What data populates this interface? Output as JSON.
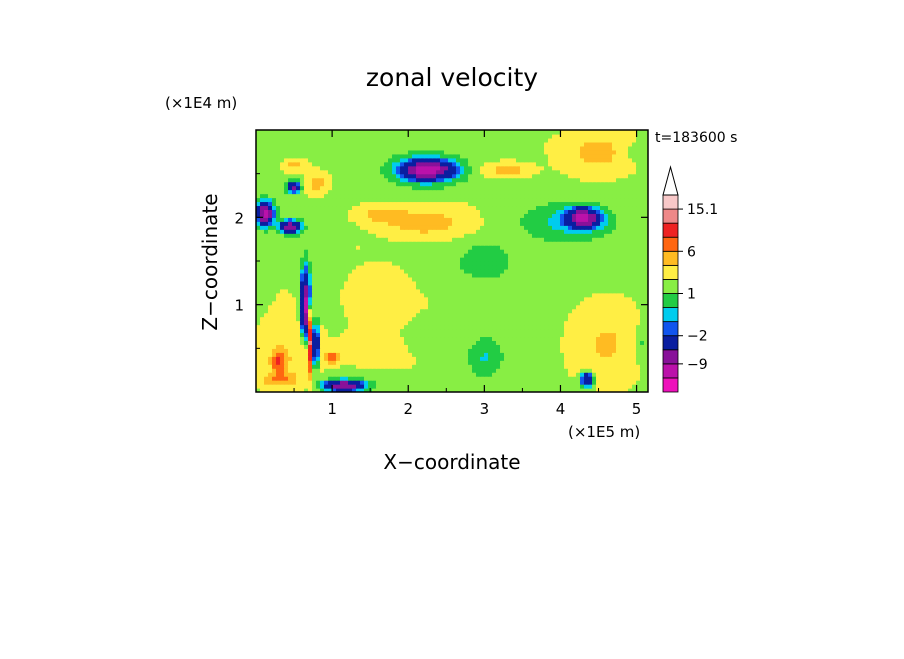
{
  "chart_data": {
    "type": "heatmap",
    "title": "zonal velocity",
    "xlabel": "X−coordinate",
    "ylabel": "Z−coordinate",
    "x_scale_label": "(×1E5 m)",
    "y_scale_label": "(×1E4 m)",
    "time_label": "t=183600 s",
    "xlim": [
      0,
      5.15
    ],
    "ylim": [
      0,
      3.0
    ],
    "x_ticks": [
      1,
      2,
      3,
      4,
      5
    ],
    "y_ticks": [
      1,
      2
    ],
    "x_tick_labels": [
      "1",
      "2",
      "3",
      "4",
      "5"
    ],
    "y_tick_labels": [
      "1",
      "2"
    ],
    "grid": false,
    "legend_position": "right",
    "colorbar": {
      "levels": [
        -16,
        -12.5,
        -9,
        -5.5,
        -2,
        -1,
        0,
        1,
        2,
        4,
        6,
        9,
        12,
        15.1
      ],
      "tick_labels": [
        "15.1",
        "6",
        "1",
        "−2",
        "−9"
      ],
      "tick_values": [
        15.1,
        6,
        1,
        -2,
        -9
      ],
      "colors": [
        "#ee11bb",
        "#bb11aa",
        "#881199",
        "#0a1ea0",
        "#1155ee",
        "#00ccee",
        "#22cc44",
        "#88ee44",
        "#ffee44",
        "#ffbb22",
        "#ff6611",
        "#ee2222",
        "#ee8888",
        "#f8c8c8"
      ],
      "overflow_color": "#ffffff"
    },
    "field": {
      "background_value": 1.5,
      "features": [
        {
          "x": 0.45,
          "z": 0.5,
          "rx": 0.4,
          "rz": 0.45,
          "v": 2.2
        },
        {
          "x": 0.35,
          "z": 0.15,
          "rx": 0.18,
          "rz": 0.07,
          "v": 4.0
        },
        {
          "x": 0.3,
          "z": 0.35,
          "rx": 0.09,
          "rz": 0.12,
          "v": 7.0
        },
        {
          "x": 1.0,
          "z": 0.4,
          "rx": 0.09,
          "rz": 0.07,
          "v": 6.0
        },
        {
          "x": 0.65,
          "z": 1.0,
          "rx": 0.06,
          "rz": 0.35,
          "v": -12.0
        },
        {
          "x": 0.78,
          "z": 0.55,
          "rx": 0.04,
          "rz": 0.25,
          "v": -10.0
        },
        {
          "x": 0.72,
          "z": 0.6,
          "rx": 0.03,
          "rz": 0.35,
          "v": 12.0
        },
        {
          "x": 1.15,
          "z": 0.08,
          "rx": 0.25,
          "rz": 0.06,
          "v": -10.0
        },
        {
          "x": 0.15,
          "z": 0.12,
          "rx": 0.1,
          "rz": 0.08,
          "v": 2.0
        },
        {
          "x": 0.12,
          "z": 2.05,
          "rx": 0.1,
          "rz": 0.12,
          "v": -12.0
        },
        {
          "x": 0.45,
          "z": 1.9,
          "rx": 0.12,
          "rz": 0.07,
          "v": -10.0
        },
        {
          "x": 0.5,
          "z": 2.35,
          "rx": 0.08,
          "rz": 0.06,
          "v": -8.0
        },
        {
          "x": 0.5,
          "z": 2.6,
          "rx": 0.15,
          "rz": 0.07,
          "v": 3.0
        },
        {
          "x": 0.8,
          "z": 2.4,
          "rx": 0.15,
          "rz": 0.12,
          "v": 3.5
        },
        {
          "x": 2.25,
          "z": 2.55,
          "rx": 0.3,
          "rz": 0.1,
          "v": -12.0
        },
        {
          "x": 2.25,
          "z": 2.55,
          "rx": 0.5,
          "rz": 0.2,
          "v": -1.5
        },
        {
          "x": 2.2,
          "z": 1.95,
          "rx": 0.55,
          "rz": 0.16,
          "v": 4.0
        },
        {
          "x": 1.6,
          "z": 2.05,
          "rx": 0.3,
          "rz": 0.1,
          "v": 2.8
        },
        {
          "x": 3.3,
          "z": 2.55,
          "rx": 0.3,
          "rz": 0.08,
          "v": 3.5
        },
        {
          "x": 4.3,
          "z": 2.0,
          "rx": 0.2,
          "rz": 0.1,
          "v": -11.0
        },
        {
          "x": 4.1,
          "z": 1.95,
          "rx": 0.55,
          "rz": 0.2,
          "v": -1.8
        },
        {
          "x": 3.0,
          "z": 1.5,
          "rx": 0.35,
          "rz": 0.2,
          "v": -1.2
        },
        {
          "x": 2.8,
          "z": 2.2,
          "rx": 0.25,
          "rz": 0.15,
          "v": 0.3
        },
        {
          "x": 4.5,
          "z": 2.75,
          "rx": 0.5,
          "rz": 0.25,
          "v": 3.2
        },
        {
          "x": 5.0,
          "z": 2.75,
          "rx": 0.2,
          "rz": 0.12,
          "v": -1.5
        },
        {
          "x": 3.4,
          "z": 0.7,
          "rx": 0.4,
          "rz": 0.55,
          "v": -0.2
        },
        {
          "x": 3.0,
          "z": 0.4,
          "rx": 0.2,
          "rz": 0.2,
          "v": -1.5
        },
        {
          "x": 4.6,
          "z": 0.55,
          "rx": 0.45,
          "rz": 0.45,
          "v": 2.8
        },
        {
          "x": 4.35,
          "z": 0.15,
          "rx": 0.08,
          "rz": 0.08,
          "v": -8.0
        },
        {
          "x": 5.05,
          "z": 0.55,
          "rx": 0.12,
          "rz": 0.2,
          "v": -1.5
        },
        {
          "x": 4.9,
          "z": 1.35,
          "rx": 0.2,
          "rz": 0.25,
          "v": 0.2
        },
        {
          "x": 1.6,
          "z": 1.1,
          "rx": 0.4,
          "rz": 0.35,
          "v": 2.0
        },
        {
          "x": 2.35,
          "z": 1.0,
          "rx": 0.35,
          "rz": 0.3,
          "v": 0.4
        },
        {
          "x": 1.5,
          "z": 0.5,
          "rx": 0.35,
          "rz": 0.2,
          "v": 1.9
        },
        {
          "x": 2.0,
          "z": 0.35,
          "rx": 0.3,
          "rz": 0.15,
          "v": 0.5
        },
        {
          "x": 1.3,
          "z": 1.65,
          "rx": 0.3,
          "rz": 0.08,
          "v": 0.4
        },
        {
          "x": 2.3,
          "z": 1.55,
          "rx": 0.35,
          "rz": 0.08,
          "v": 0.3
        },
        {
          "x": 0.35,
          "z": 1.2,
          "rx": 0.2,
          "rz": 0.2,
          "v": 0.3
        },
        {
          "x": 3.0,
          "z": 2.85,
          "rx": 0.8,
          "rz": 0.1,
          "v": 0.4
        },
        {
          "x": 1.4,
          "z": 2.85,
          "rx": 0.3,
          "rz": 0.1,
          "v": -0.5
        }
      ]
    }
  }
}
